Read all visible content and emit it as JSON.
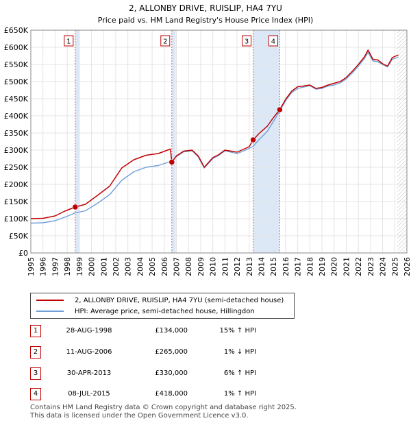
{
  "chart_data": {
    "type": "line",
    "title": "2, ALLONBY DRIVE, RUISLIP, HA4 7YU",
    "subtitle": "Price paid vs. HM Land Registry's House Price Index (HPI)",
    "xlim": [
      1995,
      2026
    ],
    "ylim": [
      0,
      650000
    ],
    "x_ticks": [
      1995,
      1996,
      1997,
      1998,
      1999,
      2000,
      2001,
      2002,
      2003,
      2004,
      2005,
      2006,
      2007,
      2008,
      2009,
      2010,
      2011,
      2012,
      2013,
      2014,
      2015,
      2016,
      2017,
      2018,
      2019,
      2020,
      2021,
      2022,
      2023,
      2024,
      2025,
      2026
    ],
    "x_tick_labels": [
      "1995",
      "1996",
      "1997",
      "1998",
      "1999",
      "2000",
      "2001",
      "2002",
      "2003",
      "2004",
      "2005",
      "2006",
      "2007",
      "2008",
      "2009",
      "2010",
      "2011",
      "2012",
      "2013",
      "2014",
      "2015",
      "2016",
      "2017",
      "2018",
      "2019",
      "2020",
      "2021",
      "2022",
      "2023",
      "2024",
      "2025",
      "2026"
    ],
    "y_ticks": [
      0,
      50000,
      100000,
      150000,
      200000,
      250000,
      300000,
      350000,
      400000,
      450000,
      500000,
      550000,
      600000,
      650000
    ],
    "y_tick_labels": [
      "£0",
      "£50K",
      "£100K",
      "£150K",
      "£200K",
      "£250K",
      "£300K",
      "£350K",
      "£400K",
      "£450K",
      "£500K",
      "£550K",
      "£600K",
      "£650K"
    ],
    "grid": true,
    "forecast_start": 2025.2,
    "series": [
      {
        "name": "2, ALLONBY DRIVE, RUISLIP, HA4 7YU (semi-detached house)",
        "color": "#c00000",
        "x": [
          1995.0,
          1996.0,
          1997.0,
          1997.8,
          1998.66,
          1999.5,
          2000.5,
          2001.5,
          2002.5,
          2003.5,
          2004.5,
          2005.5,
          2006.5,
          2006.62,
          2007.0,
          2007.6,
          2008.3,
          2008.8,
          2009.3,
          2010.0,
          2010.5,
          2011.0,
          2011.5,
          2012.0,
          2012.5,
          2013.0,
          2013.33,
          2013.8,
          2014.5,
          2015.0,
          2015.52,
          2016.0,
          2016.5,
          2017.0,
          2017.5,
          2018.0,
          2018.5,
          2019.0,
          2019.5,
          2020.0,
          2020.5,
          2021.0,
          2021.5,
          2022.0,
          2022.5,
          2022.8,
          2023.2,
          2023.6,
          2024.0,
          2024.4,
          2024.8,
          2025.3
        ],
        "values": [
          100000,
          101000,
          108000,
          122000,
          134000,
          142000,
          168000,
          195000,
          248000,
          272000,
          285000,
          290000,
          303000,
          265000,
          283000,
          297000,
          300000,
          283000,
          250000,
          278000,
          287000,
          300000,
          297000,
          294000,
          302000,
          310000,
          330000,
          348000,
          370000,
          395000,
          418000,
          448000,
          472000,
          485000,
          487000,
          490000,
          480000,
          483000,
          490000,
          495000,
          500000,
          512000,
          530000,
          550000,
          572000,
          592000,
          565000,
          563000,
          552000,
          545000,
          570000,
          578000
        ]
      },
      {
        "name": "HPI: Average price, semi-detached house, Hillingdon",
        "color": "#6f9fd8",
        "x": [
          1995.0,
          1996.0,
          1997.0,
          1998.0,
          1998.66,
          1999.5,
          2000.5,
          2001.5,
          2002.5,
          2003.5,
          2004.5,
          2005.5,
          2006.62,
          2007.0,
          2007.6,
          2008.3,
          2008.8,
          2009.3,
          2010.0,
          2010.5,
          2011.0,
          2011.5,
          2012.0,
          2012.5,
          2013.33,
          2013.8,
          2014.5,
          2015.52,
          2016.0,
          2016.5,
          2017.0,
          2017.5,
          2018.0,
          2018.5,
          2019.0,
          2019.5,
          2020.0,
          2020.5,
          2021.0,
          2021.5,
          2022.0,
          2022.5,
          2022.8,
          2023.2,
          2023.6,
          2024.0,
          2024.4,
          2024.8,
          2025.3
        ],
        "values": [
          87000,
          88000,
          94000,
          107000,
          117000,
          123000,
          145000,
          170000,
          212000,
          237000,
          250000,
          255000,
          268000,
          281000,
          295000,
          298000,
          280000,
          248000,
          275000,
          285000,
          298000,
          294000,
          290000,
          297000,
          311000,
          330000,
          355000,
          414000,
          444000,
          468000,
          480000,
          484000,
          488000,
          478000,
          480000,
          487000,
          490000,
          496000,
          508000,
          525000,
          545000,
          567000,
          585000,
          560000,
          558000,
          550000,
          543000,
          565000,
          572000
        ]
      }
    ],
    "annotations": [
      {
        "label": "1",
        "x": 1998.66,
        "value": 134000
      },
      {
        "label": "2",
        "x": 2006.62,
        "value": 265000
      },
      {
        "label": "3",
        "x": 2013.33,
        "value": 330000
      },
      {
        "label": "4",
        "x": 2015.52,
        "value": 418000
      }
    ],
    "legend_position": "bottom"
  },
  "transactions": [
    {
      "label": "1",
      "date": "28-AUG-1998",
      "price": "£134,000",
      "hpi": "15% ↑ HPI"
    },
    {
      "label": "2",
      "date": "11-AUG-2006",
      "price": "£265,000",
      "hpi": "1% ↓ HPI"
    },
    {
      "label": "3",
      "date": "30-APR-2013",
      "price": "£330,000",
      "hpi": "6% ↑ HPI"
    },
    {
      "label": "4",
      "date": "08-JUL-2015",
      "price": "£418,000",
      "hpi": "1% ↑ HPI"
    }
  ],
  "footer": {
    "line1": "Contains HM Land Registry data © Crown copyright and database right 2025.",
    "line2": "This data is licensed under the Open Government Licence v3.0."
  },
  "colors": {
    "property": "#c00000",
    "hpi": "#6f9fd8",
    "highlight": "#dde8f7",
    "grid": "#e4e4e4"
  }
}
